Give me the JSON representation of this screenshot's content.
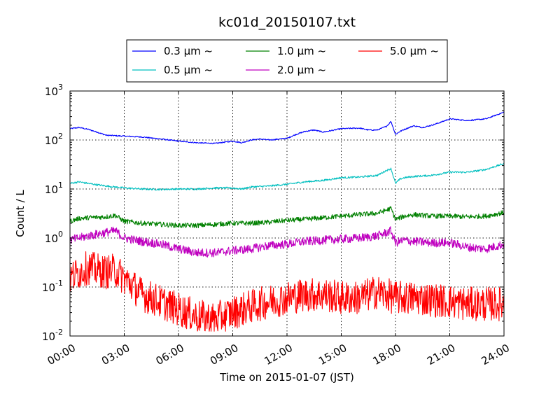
{
  "chart_data": {
    "type": "line",
    "title": "kc01d_20150107.txt",
    "xlabel": "Time on 2015-01-07 (JST)",
    "ylabel": "Count / L",
    "y_scale": "log",
    "ylim": [
      0.01,
      1000
    ],
    "xlim": [
      "00:00",
      "24:00"
    ],
    "x_ticks": [
      "00:00",
      "03:00",
      "06:00",
      "09:00",
      "12:00",
      "15:00",
      "18:00",
      "21:00",
      "24:00"
    ],
    "y_ticks": [
      {
        "base": "10",
        "exp": "-2",
        "value": 0.01
      },
      {
        "base": "10",
        "exp": "-1",
        "value": 0.1
      },
      {
        "base": "10",
        "exp": "0",
        "value": 1
      },
      {
        "base": "10",
        "exp": "1",
        "value": 10
      },
      {
        "base": "10",
        "exp": "2",
        "value": 100
      },
      {
        "base": "10",
        "exp": "3",
        "value": 1000
      }
    ],
    "grid": true,
    "legend_position": "top-center",
    "series": [
      {
        "name": "0.3 μm ~",
        "color": "#0000ff",
        "x": [
          "00:00",
          "00:30",
          "01:00",
          "01:30",
          "02:00",
          "03:00",
          "04:00",
          "05:00",
          "06:00",
          "07:00",
          "08:00",
          "09:00",
          "09:30",
          "10:00",
          "10:30",
          "11:00",
          "12:00",
          "12:30",
          "13:00",
          "13:30",
          "14:00",
          "15:00",
          "16:00",
          "16:30",
          "17:00",
          "17:30",
          "17:45",
          "18:00",
          "18:15",
          "18:30",
          "19:00",
          "19:30",
          "20:00",
          "20:30",
          "21:00",
          "22:00",
          "23:00",
          "24:00"
        ],
        "values": [
          170,
          180,
          165,
          145,
          125,
          120,
          115,
          105,
          95,
          88,
          85,
          95,
          88,
          100,
          105,
          100,
          108,
          130,
          150,
          160,
          145,
          170,
          175,
          160,
          160,
          190,
          240,
          130,
          150,
          165,
          195,
          180,
          200,
          230,
          270,
          250,
          270,
          370
        ]
      },
      {
        "name": "0.5 μm ~",
        "color": "#00bfbf",
        "x": [
          "00:00",
          "00:30",
          "01:00",
          "02:00",
          "03:00",
          "04:00",
          "05:00",
          "06:00",
          "07:00",
          "08:00",
          "09:00",
          "09:30",
          "10:00",
          "11:00",
          "12:00",
          "13:00",
          "14:00",
          "15:00",
          "16:00",
          "17:00",
          "17:30",
          "17:45",
          "18:00",
          "18:15",
          "18:30",
          "19:00",
          "20:00",
          "21:00",
          "22:00",
          "23:00",
          "24:00"
        ],
        "values": [
          13,
          14,
          13,
          11.5,
          10.5,
          10,
          9.8,
          10,
          10,
          10.5,
          10.5,
          10,
          11,
          11.5,
          12.5,
          14,
          15,
          17,
          17.5,
          19,
          24,
          26,
          13,
          16,
          17,
          18,
          19,
          22,
          22,
          25,
          33
        ]
      },
      {
        "name": "1.0 μm ~",
        "color": "#008000",
        "x": [
          "00:00",
          "00:30",
          "01:00",
          "02:00",
          "02:30",
          "03:00",
          "04:00",
          "05:00",
          "06:00",
          "07:00",
          "08:00",
          "09:00",
          "10:00",
          "11:00",
          "12:00",
          "13:00",
          "14:00",
          "15:00",
          "16:00",
          "17:00",
          "17:45",
          "18:00",
          "18:30",
          "19:00",
          "20:00",
          "21:00",
          "22:00",
          "23:00",
          "24:00"
        ],
        "values": [
          2.2,
          2.5,
          2.6,
          2.7,
          2.9,
          2.2,
          2.0,
          1.9,
          1.8,
          1.8,
          1.9,
          2.0,
          2.0,
          2.1,
          2.3,
          2.4,
          2.6,
          2.8,
          3.0,
          3.2,
          4.0,
          2.4,
          2.8,
          3.0,
          2.8,
          2.8,
          2.7,
          2.8,
          3.3
        ]
      },
      {
        "name": "2.0 μm ~",
        "color": "#bf00bf",
        "x": [
          "00:00",
          "00:30",
          "01:00",
          "02:00",
          "02:30",
          "03:00",
          "04:00",
          "05:00",
          "06:00",
          "07:00",
          "08:00",
          "09:00",
          "10:00",
          "11:00",
          "12:00",
          "13:00",
          "14:00",
          "15:00",
          "16:00",
          "17:00",
          "17:45",
          "18:00",
          "18:30",
          "19:00",
          "20:00",
          "21:00",
          "22:00",
          "23:00",
          "24:00"
        ],
        "values": [
          0.9,
          1.0,
          1.1,
          1.3,
          1.4,
          1.0,
          0.85,
          0.75,
          0.6,
          0.5,
          0.5,
          0.55,
          0.6,
          0.7,
          0.75,
          0.85,
          0.9,
          0.95,
          1.0,
          1.1,
          1.4,
          0.8,
          0.9,
          0.85,
          0.8,
          0.8,
          0.65,
          0.6,
          0.75
        ]
      },
      {
        "name": "5.0 μm ~",
        "color": "#ff0000",
        "x": [
          "00:00",
          "00:30",
          "01:00",
          "01:30",
          "02:00",
          "02:30",
          "03:00",
          "04:00",
          "05:00",
          "06:00",
          "07:00",
          "08:00",
          "09:00",
          "10:00",
          "11:00",
          "12:00",
          "13:00",
          "14:00",
          "15:00",
          "16:00",
          "17:00",
          "18:00",
          "19:00",
          "20:00",
          "21:00",
          "22:00",
          "23:00",
          "24:00"
        ],
        "values": [
          0.15,
          0.2,
          0.25,
          0.22,
          0.2,
          0.22,
          0.15,
          0.07,
          0.05,
          0.035,
          0.025,
          0.022,
          0.03,
          0.04,
          0.05,
          0.06,
          0.07,
          0.07,
          0.06,
          0.06,
          0.08,
          0.06,
          0.06,
          0.055,
          0.05,
          0.045,
          0.045,
          0.045
        ]
      }
    ]
  }
}
